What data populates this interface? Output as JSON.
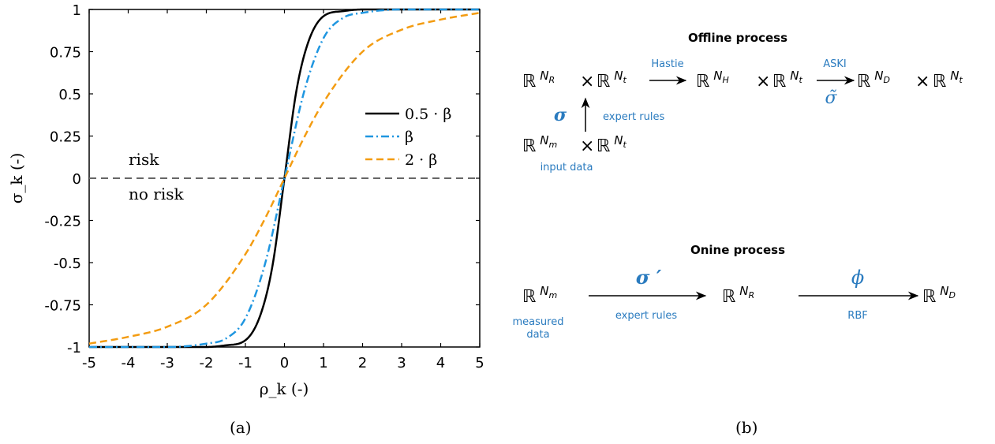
{
  "chart_data": {
    "type": "line",
    "xlabel": "ρ_k (-)",
    "ylabel": "σ_k (-)",
    "xlim": [
      -5,
      5
    ],
    "ylim": [
      -1,
      1
    ],
    "x_ticks": [
      "-5",
      "-4",
      "-3",
      "-2",
      "-1",
      "0",
      "1",
      "2",
      "3",
      "4",
      "5"
    ],
    "y_ticks": [
      "-1",
      "-0.75",
      "-0.5",
      "-0.25",
      "0",
      "0.25",
      "0.5",
      "0.75",
      "1"
    ],
    "legend_position": "right",
    "series": [
      {
        "name": "0.5 · β",
        "color": "#000000",
        "dash": "solid",
        "x": [
          -5,
          -2,
          -1.5,
          -1,
          -0.6,
          -0.3,
          0,
          0.3,
          0.6,
          1,
          1.5,
          2,
          5
        ],
        "y": [
          -1,
          -1,
          -0.99,
          -0.96,
          -0.8,
          -0.51,
          0,
          0.51,
          0.8,
          0.96,
          0.99,
          1,
          1
        ]
      },
      {
        "name": "β",
        "color": "#1f96e0",
        "dash": "dashdot",
        "x": [
          -5,
          -3,
          -2,
          -1.5,
          -1,
          -0.5,
          0,
          0.5,
          1,
          1.5,
          2,
          3,
          5
        ],
        "y": [
          -1,
          -1,
          -0.98,
          -0.95,
          -0.83,
          -0.51,
          0,
          0.51,
          0.83,
          0.95,
          0.98,
          1,
          1
        ]
      },
      {
        "name": "2 · β",
        "color": "#f39c12",
        "dash": "dashed",
        "x": [
          -5,
          -4,
          -3,
          -2,
          -1,
          -0.5,
          0,
          0.5,
          1,
          2,
          3,
          4,
          5
        ],
        "y": [
          -0.98,
          -0.94,
          -0.88,
          -0.75,
          -0.45,
          -0.24,
          0,
          0.24,
          0.45,
          0.75,
          0.88,
          0.94,
          0.98
        ]
      }
    ],
    "reference_line": {
      "y": 0,
      "color": "#666666",
      "dash": "dashed"
    },
    "annotations": [
      "risk",
      "no risk"
    ]
  },
  "captions": {
    "a": "(a)",
    "b": "(b)"
  },
  "diagram": {
    "offline_title": "Offline process",
    "online_title": "Onine process",
    "offline": {
      "hastie": "Hastie",
      "aski": "ASKI",
      "sigma_tilde": "σ̃",
      "sigma": "σ",
      "expert_rules": "expert rules",
      "input_data": "input data"
    },
    "online": {
      "sigma_prime": "σ ′",
      "expert_rules": "expert rules",
      "phi": "ϕ",
      "rbf": "RBF",
      "measured_data_line1": "measured",
      "measured_data_line2": "data"
    },
    "accent_color": "#2a7bbf"
  }
}
